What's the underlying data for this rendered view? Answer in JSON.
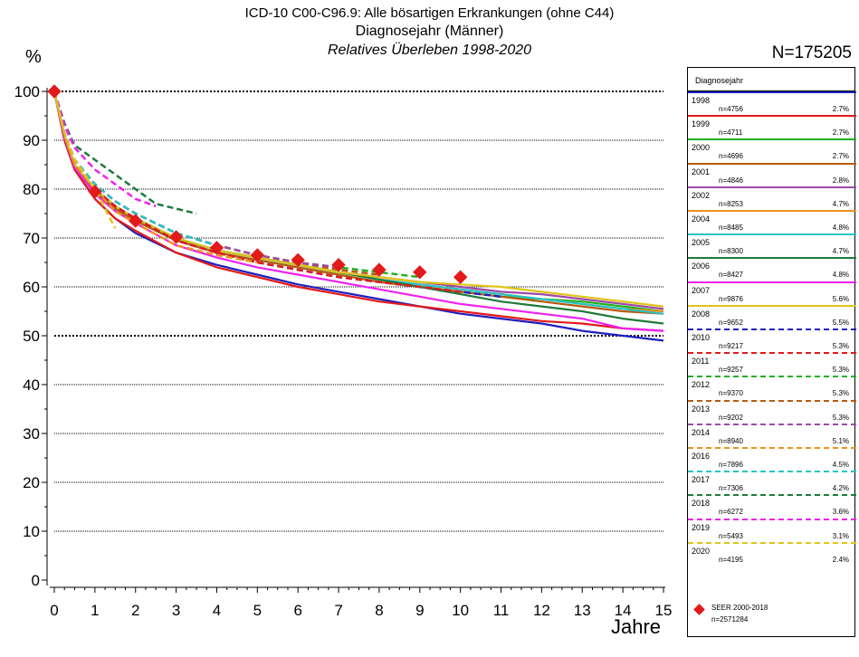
{
  "header": {
    "title_line1": "ICD-10 C00-C96.9: Alle bösartigen Erkrankungen (ohne C44)",
    "title_line2": "Diagnosejahr (Männer)",
    "title_line3": "Relatives Überleben 1998-2020",
    "y_unit": "%",
    "total_n": "N=175205"
  },
  "chart_data": {
    "type": "line",
    "xlabel": "Jahre",
    "ylabel": "%",
    "xlim": [
      0,
      15
    ],
    "ylim": [
      0,
      100
    ],
    "x_ticks": [
      "0",
      "1",
      "2",
      "3",
      "4",
      "5",
      "6",
      "7",
      "8",
      "9",
      "10",
      "11",
      "12",
      "13",
      "14",
      "15"
    ],
    "y_ticks": [
      "0",
      "10",
      "20",
      "30",
      "40",
      "50",
      "60",
      "70",
      "80",
      "90",
      "100"
    ],
    "reference_lines": [
      50,
      100
    ],
    "grid": true,
    "legend_position": "right",
    "legend_title": "Diagnosejahr",
    "series": [
      {
        "name": "1998",
        "n": "n=4756",
        "share": "2.7%",
        "color": "#1f1fbf",
        "dash": false,
        "x": [
          0,
          0.25,
          0.5,
          1,
          1.5,
          2,
          3,
          4,
          5,
          6,
          7,
          8,
          9,
          10,
          11,
          12,
          13,
          14,
          15
        ],
        "y": [
          100,
          90,
          84,
          78,
          74,
          71,
          67,
          64.5,
          62.5,
          60.5,
          59,
          57.5,
          56,
          54.5,
          53.5,
          52.5,
          51,
          50,
          49
        ]
      },
      {
        "name": "1999",
        "n": "n=4711",
        "share": "2.7%",
        "color": "#e21a1a",
        "dash": false,
        "x": [
          0,
          0.25,
          0.5,
          1,
          1.5,
          2,
          3,
          4,
          5,
          6,
          7,
          8,
          9,
          10,
          11,
          12,
          13,
          14,
          15
        ],
        "y": [
          100,
          90,
          84,
          78,
          74,
          71.5,
          67,
          64,
          62,
          60,
          58.5,
          57,
          56,
          55,
          54,
          53,
          52.5,
          51.5,
          51
        ]
      },
      {
        "name": "2000",
        "n": "n=4696",
        "share": "2.7%",
        "color": "#22b022",
        "dash": false,
        "x": [
          0,
          0.25,
          0.5,
          1,
          1.5,
          2,
          3,
          4,
          5,
          6,
          7,
          8,
          9,
          10,
          11,
          12,
          13,
          14,
          15
        ],
        "y": [
          100,
          91,
          85,
          79.5,
          76,
          73.5,
          69.5,
          67,
          65.5,
          64,
          62.5,
          61,
          60,
          59,
          58,
          57.5,
          57,
          56,
          55
        ]
      },
      {
        "name": "2001",
        "n": "n=4846",
        "share": "2.8%",
        "color": "#b85a10",
        "dash": false,
        "x": [
          0,
          0.25,
          0.5,
          1,
          1.5,
          2,
          3,
          4,
          5,
          6,
          7,
          8,
          9,
          10,
          11,
          12,
          13,
          14,
          15
        ],
        "y": [
          100,
          91,
          85,
          79.5,
          76,
          73.5,
          69.5,
          67,
          65.5,
          64,
          62.5,
          61,
          60,
          59,
          58,
          57,
          56,
          55,
          54.5
        ]
      },
      {
        "name": "2002",
        "n": "n=8253",
        "share": "4.7%",
        "color": "#9e4aa8",
        "dash": false,
        "x": [
          0,
          0.25,
          0.5,
          1,
          1.5,
          2,
          3,
          4,
          5,
          6,
          7,
          8,
          9,
          10,
          11,
          12,
          13,
          14,
          15
        ],
        "y": [
          100,
          91,
          85,
          80,
          76.5,
          74,
          70,
          67.5,
          66,
          64.5,
          63,
          62,
          61,
          60,
          59,
          58.5,
          57.5,
          56.5,
          55.5
        ]
      },
      {
        "name": "2004",
        "n": "n=8485",
        "share": "4.8%",
        "color": "#f0901e",
        "dash": false,
        "x": [
          0,
          0.25,
          0.5,
          1,
          1.5,
          2,
          3,
          4,
          5,
          6,
          7,
          8,
          9,
          10,
          11,
          12,
          13,
          14,
          15
        ],
        "y": [
          100,
          91,
          85,
          80,
          76.5,
          74,
          70,
          67.5,
          66,
          64.5,
          63,
          61.5,
          60.5,
          59.5,
          58.5,
          57.5,
          56.5,
          55.5,
          55
        ]
      },
      {
        "name": "2005",
        "n": "n=8300",
        "share": "4.7%",
        "color": "#27c4c4",
        "dash": false,
        "x": [
          0,
          0.25,
          0.5,
          1,
          1.5,
          2,
          3,
          4,
          5,
          6,
          7,
          8,
          9,
          10,
          11,
          12,
          13,
          14,
          15
        ],
        "y": [
          100,
          91,
          85,
          80,
          76.5,
          74,
          70,
          67.5,
          66,
          64.5,
          63,
          61.5,
          60.5,
          59.5,
          58.5,
          57.5,
          56.5,
          55.5,
          54.5
        ]
      },
      {
        "name": "2006",
        "n": "n=8427",
        "share": "4.8%",
        "color": "#1f7a3a",
        "dash": false,
        "x": [
          0,
          0.25,
          0.5,
          1,
          1.5,
          2,
          3,
          4,
          5,
          6,
          7,
          8,
          9,
          10,
          11,
          12,
          13,
          14,
          15
        ],
        "y": [
          100,
          91,
          85,
          80,
          76.5,
          74,
          70,
          67.5,
          66,
          64.5,
          63,
          61.5,
          60,
          58.5,
          57,
          56,
          55,
          53.5,
          52.5
        ]
      },
      {
        "name": "2007",
        "n": "n=9876",
        "share": "5.6%",
        "color": "#ee22ee",
        "dash": false,
        "x": [
          0,
          0.25,
          0.5,
          1,
          1.5,
          2,
          3,
          4,
          5,
          6,
          7,
          8,
          9,
          10,
          11,
          12,
          13,
          14,
          15
        ],
        "y": [
          100,
          90.5,
          84.5,
          79,
          75.5,
          73,
          68.5,
          66,
          64,
          62.5,
          61,
          59.5,
          58,
          56.5,
          55.5,
          54.5,
          53.5,
          51.5,
          51
        ]
      },
      {
        "name": "2008",
        "n": "n=9652",
        "share": "5.5%",
        "color": "#e0c418",
        "dash": false,
        "x": [
          0,
          0.25,
          0.5,
          1,
          1.5,
          2,
          3,
          4,
          5,
          6,
          7,
          8,
          9,
          10,
          11,
          12,
          13,
          14,
          15
        ],
        "y": [
          100,
          91,
          85,
          80,
          76.5,
          74,
          70,
          67.5,
          66,
          64.5,
          63,
          62,
          61,
          60.5,
          60,
          59,
          58,
          57,
          56
        ]
      },
      {
        "name": "2010",
        "n": "n=9217",
        "share": "5.3%",
        "color": "#1f1fbf",
        "dash": true,
        "x": [
          0,
          0.25,
          0.5,
          1,
          1.5,
          2,
          3,
          4,
          5,
          6,
          7,
          8,
          9,
          10,
          11
        ],
        "y": [
          100,
          91,
          85,
          80,
          76.5,
          74,
          69.5,
          67,
          65,
          63.5,
          62,
          61,
          60,
          59,
          58
        ]
      },
      {
        "name": "2011",
        "n": "n=9257",
        "share": "5.3%",
        "color": "#e21a1a",
        "dash": true,
        "x": [
          0,
          0.25,
          0.5,
          1,
          1.5,
          2,
          3,
          4,
          5,
          6,
          7,
          8,
          9,
          10
        ],
        "y": [
          100,
          91,
          85,
          80,
          76.5,
          74,
          69.5,
          67,
          65,
          63.5,
          62,
          61,
          60,
          59
        ]
      },
      {
        "name": "2012",
        "n": "n=9370",
        "share": "5.3%",
        "color": "#22b022",
        "dash": true,
        "x": [
          0,
          0.25,
          0.5,
          1,
          1.5,
          2,
          3,
          4,
          5,
          6,
          7,
          8,
          9
        ],
        "y": [
          100,
          91.5,
          86,
          81,
          77.5,
          75,
          71,
          68.5,
          66.5,
          65,
          64,
          63,
          62
        ]
      },
      {
        "name": "2013",
        "n": "n=9202",
        "share": "5.3%",
        "color": "#b85a10",
        "dash": true,
        "x": [
          0,
          0.25,
          0.5,
          1,
          1.5,
          2,
          3,
          4,
          5,
          6,
          7,
          8
        ],
        "y": [
          100,
          91.5,
          86,
          81,
          77.5,
          75,
          71,
          68.5,
          66.5,
          65,
          63.5,
          62.5
        ]
      },
      {
        "name": "2014",
        "n": "n=8940",
        "share": "5.1%",
        "color": "#9e4aa8",
        "dash": true,
        "x": [
          0,
          0.25,
          0.5,
          1,
          1.5,
          2,
          3,
          4,
          5,
          6,
          7
        ],
        "y": [
          100,
          91.5,
          86,
          81,
          77.5,
          75,
          71,
          68.5,
          66.5,
          65,
          64
        ]
      },
      {
        "name": "2016",
        "n": "n=7896",
        "share": "4.5%",
        "color": "#f0901e",
        "dash": true,
        "x": [
          0,
          0.25,
          0.5,
          1,
          1.5,
          2,
          3,
          4,
          5
        ],
        "y": [
          100,
          91,
          85,
          80,
          75.5,
          73,
          68.5,
          66.5,
          65
        ]
      },
      {
        "name": "2017",
        "n": "n=7306",
        "share": "4.2%",
        "color": "#27c4c4",
        "dash": true,
        "x": [
          0,
          0.25,
          0.5,
          1,
          1.5,
          2,
          3,
          4
        ],
        "y": [
          100,
          91.5,
          86,
          81,
          77.5,
          75,
          71,
          68.5
        ]
      },
      {
        "name": "2018",
        "n": "n=6272",
        "share": "3.6%",
        "color": "#1f7a3a",
        "dash": true,
        "x": [
          0,
          0.25,
          0.5,
          1,
          1.5,
          2,
          2.5,
          3,
          3.5
        ],
        "y": [
          100,
          93.5,
          89,
          86,
          83,
          80,
          77,
          76,
          75
        ]
      },
      {
        "name": "2019",
        "n": "n=5493",
        "share": "3.1%",
        "color": "#ee22ee",
        "dash": true,
        "x": [
          0,
          0.25,
          0.5,
          1,
          1.5,
          2,
          2.5
        ],
        "y": [
          100,
          93,
          88.5,
          84,
          81,
          78,
          76.5
        ]
      },
      {
        "name": "2020",
        "n": "n=4195",
        "share": "2.4%",
        "color": "#e0c418",
        "dash": true,
        "x": [
          0,
          0.25,
          0.5,
          1,
          1.5
        ],
        "y": [
          100,
          91.5,
          86,
          80,
          72
        ]
      }
    ],
    "reference": {
      "name": "SEER 2000-2018",
      "n": "n=2571284",
      "color": "#e21a1a",
      "x": [
        0,
        1,
        2,
        3,
        4,
        5,
        6,
        7,
        8,
        9,
        10
      ],
      "y": [
        100,
        79.5,
        73.5,
        70.2,
        68,
        66.5,
        65.5,
        64.5,
        63.5,
        63,
        62
      ]
    }
  }
}
